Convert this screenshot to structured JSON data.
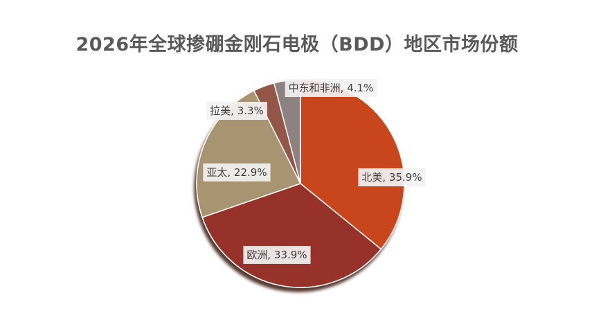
{
  "chart_data": {
    "type": "pie",
    "title": "2026年全球掺硼金刚石电极（BDD）地区市场份额",
    "slices": [
      {
        "label": "北美",
        "value": 35.9,
        "display": "北美, 35.9%",
        "color": "#c9441f"
      },
      {
        "label": "欧洲",
        "value": 33.9,
        "display": "欧洲, 33.9%",
        "color": "#96322a"
      },
      {
        "label": "亚太",
        "value": 22.9,
        "display": "亚太, 22.9%",
        "color": "#a89470"
      },
      {
        "label": "拉美",
        "value": 3.3,
        "display": "拉美, 3.3%",
        "color": "#94574a"
      },
      {
        "label": "中东和非洲",
        "value": 4.1,
        "display": "中东和非洲, 4.1%",
        "color": "#8c8282"
      }
    ],
    "legend": "none"
  }
}
